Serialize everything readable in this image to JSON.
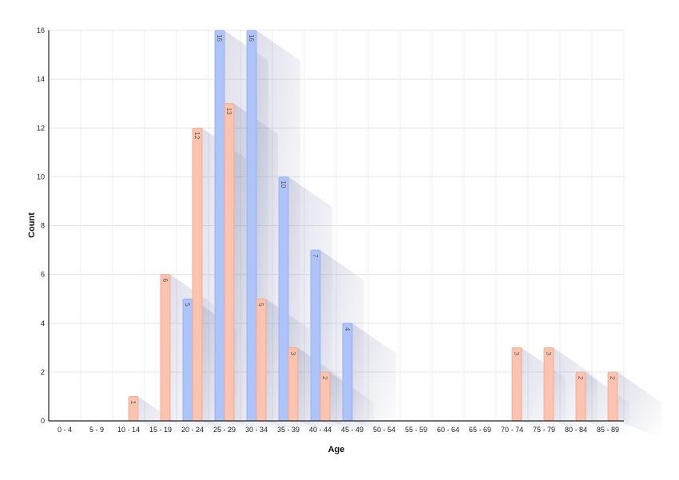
{
  "chart_data": {
    "type": "bar",
    "xlabel": "Age",
    "ylabel": "Count",
    "ylim": [
      0,
      16
    ],
    "yticks": [
      0,
      2,
      4,
      6,
      8,
      10,
      12,
      14,
      16
    ],
    "grid": true,
    "categories": [
      "0 - 4",
      "5 - 9",
      "10 - 14",
      "15 - 19",
      "20 - 24",
      "25 - 29",
      "30 - 34",
      "35 - 39",
      "40 - 44",
      "45 - 49",
      "50 - 54",
      "55 - 59",
      "60 - 64",
      "65 - 69",
      "70 - 74",
      "75 - 79",
      "80 - 84",
      "85 - 89"
    ],
    "series": [
      {
        "color": "#aec3f8",
        "stroke": "#8fa9ef",
        "values": [
          0,
          0,
          0,
          0,
          5,
          16,
          16,
          10,
          7,
          4,
          0,
          0,
          0,
          0,
          0,
          0,
          0,
          0
        ]
      },
      {
        "color": "#fcc3af",
        "stroke": "#f0a58d",
        "values": [
          0,
          0,
          1,
          6,
          12,
          13,
          5,
          3,
          2,
          0,
          0,
          0,
          0,
          0,
          3,
          3,
          2,
          2
        ]
      }
    ]
  }
}
